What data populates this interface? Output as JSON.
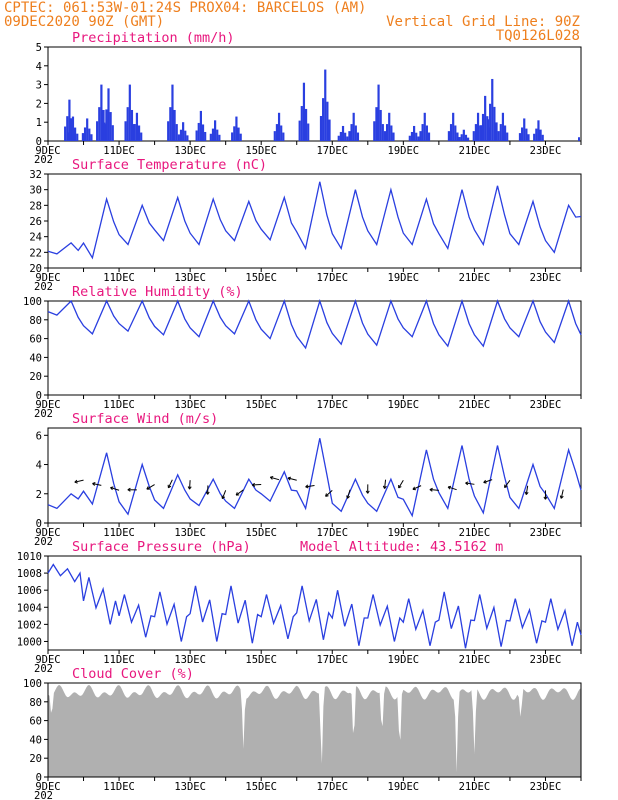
{
  "header": {
    "line1_left": "CPTEC:   061:53W-01:24S   PROX04: BARCELOS (AM)",
    "line2_left": "09DEC2020 90Z (GMT)",
    "line2_right": "Vertical Grid Line: 90Z",
    "line3_right": "TQ0126L028"
  },
  "x_axis": {
    "tick_labels": [
      "9DEC",
      "11DEC",
      "13DEC",
      "15DEC",
      "17DEC",
      "19DEC",
      "21DEC",
      "23DEC"
    ],
    "partial_label": "202"
  },
  "colors": {
    "accent_title": "#e8177e",
    "header": "#ee7f1e",
    "series": "#2a3fe0",
    "cloud_fill": "#b0b0b0",
    "wind_arrow": "#000000"
  },
  "chart_data": [
    {
      "type": "bar",
      "title": "Precipitation (mm/h)",
      "ylim": [
        0,
        5
      ],
      "yticks": [
        "0",
        "1",
        "2",
        "3",
        "4",
        "5"
      ],
      "x_range_days": [
        9,
        24
      ],
      "note_values": "hourly precipitation (mm/h), estimated",
      "peaks": [
        {
          "day": 9.6,
          "value": 2.2
        },
        {
          "day": 9.7,
          "value": 1.3
        },
        {
          "day": 10.1,
          "value": 1.2
        },
        {
          "day": 10.5,
          "value": 3.0
        },
        {
          "day": 10.7,
          "value": 2.8
        },
        {
          "day": 11.3,
          "value": 3.0
        },
        {
          "day": 11.5,
          "value": 1.5
        },
        {
          "day": 12.5,
          "value": 3.0
        },
        {
          "day": 12.8,
          "value": 1.0
        },
        {
          "day": 13.3,
          "value": 1.6
        },
        {
          "day": 13.7,
          "value": 1.1
        },
        {
          "day": 14.3,
          "value": 1.3
        },
        {
          "day": 15.5,
          "value": 1.5
        },
        {
          "day": 16.2,
          "value": 3.1
        },
        {
          "day": 16.8,
          "value": 3.8
        },
        {
          "day": 17.3,
          "value": 0.8
        },
        {
          "day": 17.6,
          "value": 1.5
        },
        {
          "day": 18.3,
          "value": 3.0
        },
        {
          "day": 18.6,
          "value": 1.5
        },
        {
          "day": 19.3,
          "value": 0.8
        },
        {
          "day": 19.6,
          "value": 1.5
        },
        {
          "day": 20.4,
          "value": 1.5
        },
        {
          "day": 20.7,
          "value": 0.6
        },
        {
          "day": 21.1,
          "value": 1.5
        },
        {
          "day": 21.3,
          "value": 2.4
        },
        {
          "day": 21.5,
          "value": 3.3
        },
        {
          "day": 21.8,
          "value": 1.5
        },
        {
          "day": 22.4,
          "value": 1.2
        },
        {
          "day": 22.8,
          "value": 1.1
        }
      ]
    },
    {
      "type": "line",
      "title": "Surface Temperature (nC)",
      "ylim": [
        20,
        32
      ],
      "yticks": [
        "20",
        "22",
        "24",
        "26",
        "28",
        "30",
        "32"
      ],
      "x_range_days": [
        9,
        24
      ],
      "note_values": "diurnal cycle, daily min/max estimated",
      "daily": [
        {
          "day": 9,
          "min": 21.8,
          "max": 23.2
        },
        {
          "day": 10,
          "min": 21.3,
          "max": 28.8
        },
        {
          "day": 11,
          "min": 23.0,
          "max": 28.0
        },
        {
          "day": 12,
          "min": 23.5,
          "max": 29.0
        },
        {
          "day": 13,
          "min": 23.0,
          "max": 28.8
        },
        {
          "day": 14,
          "min": 23.5,
          "max": 28.5
        },
        {
          "day": 15,
          "min": 23.6,
          "max": 29.0
        },
        {
          "day": 16,
          "min": 22.5,
          "max": 31.0
        },
        {
          "day": 17,
          "min": 22.5,
          "max": 30.0
        },
        {
          "day": 18,
          "min": 23.0,
          "max": 30.0
        },
        {
          "day": 19,
          "min": 23.0,
          "max": 28.8
        },
        {
          "day": 20,
          "min": 22.5,
          "max": 30.0
        },
        {
          "day": 21,
          "min": 23.0,
          "max": 30.5
        },
        {
          "day": 22,
          "min": 23.0,
          "max": 28.5
        },
        {
          "day": 23,
          "min": 22.0,
          "max": 28.0
        },
        {
          "day": 24,
          "min": 25.0,
          "max": 31.3
        }
      ]
    },
    {
      "type": "line",
      "title": "Relative Humidity (%)",
      "ylim": [
        0,
        100
      ],
      "yticks": [
        "0",
        "20",
        "40",
        "60",
        "80",
        "100"
      ],
      "x_range_days": [
        9,
        24
      ],
      "note_values": "diurnal cycle, daily min/max estimated",
      "daily": [
        {
          "day": 9,
          "min": 85,
          "max": 100
        },
        {
          "day": 10,
          "min": 65,
          "max": 100
        },
        {
          "day": 11,
          "min": 68,
          "max": 100
        },
        {
          "day": 12,
          "min": 64,
          "max": 100
        },
        {
          "day": 13,
          "min": 62,
          "max": 100
        },
        {
          "day": 14,
          "min": 65,
          "max": 100
        },
        {
          "day": 15,
          "min": 60,
          "max": 100
        },
        {
          "day": 16,
          "min": 50,
          "max": 100
        },
        {
          "day": 17,
          "min": 54,
          "max": 100
        },
        {
          "day": 18,
          "min": 53,
          "max": 100
        },
        {
          "day": 19,
          "min": 62,
          "max": 100
        },
        {
          "day": 20,
          "min": 52,
          "max": 100
        },
        {
          "day": 21,
          "min": 52,
          "max": 100
        },
        {
          "day": 22,
          "min": 62,
          "max": 100
        },
        {
          "day": 23,
          "min": 56,
          "max": 100
        },
        {
          "day": 24,
          "min": 52,
          "max": 100
        }
      ]
    },
    {
      "type": "line",
      "title": "Surface Wind (m/s)",
      "ylim": [
        0,
        6.5
      ],
      "yticks": [
        "0",
        "2",
        "4",
        "6"
      ],
      "x_range_days": [
        9,
        24
      ],
      "note_values": "wind speed with direction arrows, estimated",
      "daily": [
        {
          "day": 9,
          "min": 1.0,
          "max": 2.0
        },
        {
          "day": 10,
          "min": 1.3,
          "max": 4.8
        },
        {
          "day": 11,
          "min": 0.6,
          "max": 4.0
        },
        {
          "day": 12,
          "min": 1.0,
          "max": 3.3
        },
        {
          "day": 13,
          "min": 1.2,
          "max": 3.0
        },
        {
          "day": 14,
          "min": 1.0,
          "max": 3.0
        },
        {
          "day": 15,
          "min": 1.5,
          "max": 3.5
        },
        {
          "day": 16,
          "min": 1.0,
          "max": 5.8
        },
        {
          "day": 17,
          "min": 0.8,
          "max": 3.0
        },
        {
          "day": 18,
          "min": 0.8,
          "max": 3.0
        },
        {
          "day": 19,
          "min": 0.5,
          "max": 5.0
        },
        {
          "day": 20,
          "min": 1.0,
          "max": 5.3
        },
        {
          "day": 21,
          "min": 0.7,
          "max": 5.3
        },
        {
          "day": 22,
          "min": 1.0,
          "max": 4.0
        },
        {
          "day": 23,
          "min": 1.0,
          "max": 5.0
        },
        {
          "day": 24,
          "min": 2.0,
          "max": 3.0
        }
      ]
    },
    {
      "type": "line",
      "title": "Surface Pressure (hPa)",
      "annotation": "Model Altitude: 43.5162 m",
      "ylim": [
        999,
        1010
      ],
      "yticks": [
        "1000",
        "1002",
        "1004",
        "1006",
        "1008",
        "1010"
      ],
      "x_range_days": [
        9,
        24
      ],
      "note_values": "semi-diurnal tide, daily extremes estimated",
      "daily": [
        {
          "day": 9,
          "min": 1007.0,
          "max": 1009.0
        },
        {
          "day": 10,
          "min": 1002.0,
          "max": 1007.5
        },
        {
          "day": 11,
          "min": 1000.5,
          "max": 1005.5
        },
        {
          "day": 12,
          "min": 1000.0,
          "max": 1005.8
        },
        {
          "day": 13,
          "min": 1000.0,
          "max": 1006.5
        },
        {
          "day": 14,
          "min": 999.8,
          "max": 1006.5
        },
        {
          "day": 15,
          "min": 1000.3,
          "max": 1005.5
        },
        {
          "day": 16,
          "min": 1000.2,
          "max": 1006.5
        },
        {
          "day": 17,
          "min": 999.5,
          "max": 1006.0
        },
        {
          "day": 18,
          "min": 1000.0,
          "max": 1005.5
        },
        {
          "day": 19,
          "min": 999.5,
          "max": 1005.0
        },
        {
          "day": 20,
          "min": 999.2,
          "max": 1005.8
        },
        {
          "day": 21,
          "min": 999.4,
          "max": 1005.5
        },
        {
          "day": 22,
          "min": 999.8,
          "max": 1005.0
        },
        {
          "day": 23,
          "min": 999.5,
          "max": 1005.0
        },
        {
          "day": 24,
          "min": 999.5,
          "max": 1002.0
        }
      ]
    },
    {
      "type": "area",
      "title": "Cloud Cover (%)",
      "ylim": [
        0,
        100
      ],
      "yticks": [
        "0",
        "20",
        "40",
        "60",
        "80",
        "100"
      ],
      "x_range_days": [
        9,
        24
      ],
      "note_values": "cloud cover mostly 85-100%, dips estimated",
      "dips": [
        {
          "day": 9.1,
          "value": 60
        },
        {
          "day": 14.5,
          "value": 30
        },
        {
          "day": 16.7,
          "value": 2
        },
        {
          "day": 17.6,
          "value": 30
        },
        {
          "day": 18.4,
          "value": 40
        },
        {
          "day": 18.9,
          "value": 20
        },
        {
          "day": 20.5,
          "value": 5
        },
        {
          "day": 21.0,
          "value": 25
        },
        {
          "day": 22.3,
          "value": 60
        }
      ]
    }
  ]
}
